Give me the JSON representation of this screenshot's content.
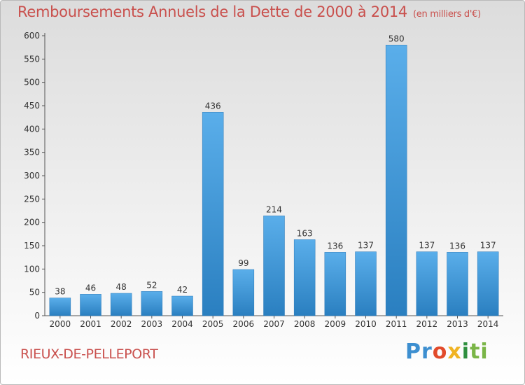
{
  "chart_data": {
    "type": "bar",
    "title": "Remboursements Annuels de la Dette de 2000 à 2014",
    "unit_note": "(en milliers d'€)",
    "categories": [
      "2000",
      "2001",
      "2002",
      "2003",
      "2004",
      "2005",
      "2006",
      "2007",
      "2008",
      "2009",
      "2010",
      "2011",
      "2012",
      "2013",
      "2014"
    ],
    "values": [
      38,
      46,
      48,
      52,
      42,
      436,
      99,
      214,
      163,
      136,
      137,
      580,
      137,
      136,
      137
    ],
    "yticks": [
      0,
      50,
      100,
      150,
      200,
      250,
      300,
      350,
      400,
      450,
      500,
      550,
      600
    ],
    "ylim": [
      0,
      600
    ],
    "xlabel": "",
    "ylabel": "",
    "grid": false,
    "bar_color": "#3f99dc"
  },
  "place_name": "RIEUX-DE-PELLEPORT",
  "logo": {
    "p1": "Pr",
    "p2": "o",
    "p3": "x",
    "p4": "i",
    "p5": "ti"
  }
}
